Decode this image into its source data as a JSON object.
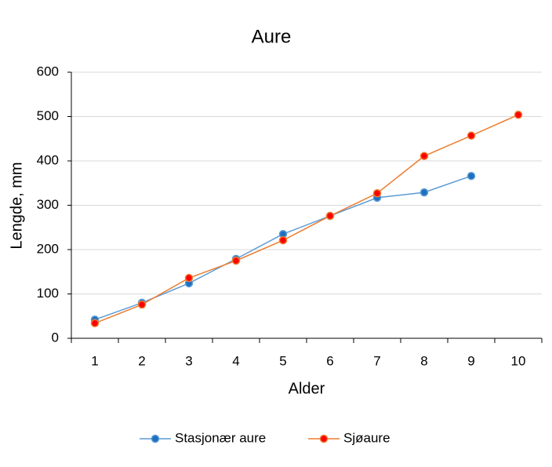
{
  "chart_data": {
    "type": "line",
    "title": "Aure",
    "x_label": "Alder",
    "y_label": "Lengde, mm",
    "categories": [
      "1",
      "2",
      "3",
      "4",
      "5",
      "6",
      "7",
      "8",
      "9",
      "10"
    ],
    "series": [
      {
        "name": "Stasjonær aure",
        "color": "#5b9bd5",
        "marker_color": "#1f6fc0",
        "values": [
          42,
          80,
          124,
          179,
          235,
          276,
          317,
          329,
          366,
          null
        ]
      },
      {
        "name": "Sjøaure",
        "color": "#ed7d31",
        "marker_color": "#ff0000",
        "values": [
          34,
          76,
          136,
          175,
          221,
          276,
          327,
          411,
          457,
          504
        ]
      }
    ],
    "ylim": [
      0,
      600
    ],
    "yticks": [
      0,
      100,
      200,
      300,
      400,
      500,
      600
    ],
    "grid": true,
    "legend": "bottom"
  }
}
